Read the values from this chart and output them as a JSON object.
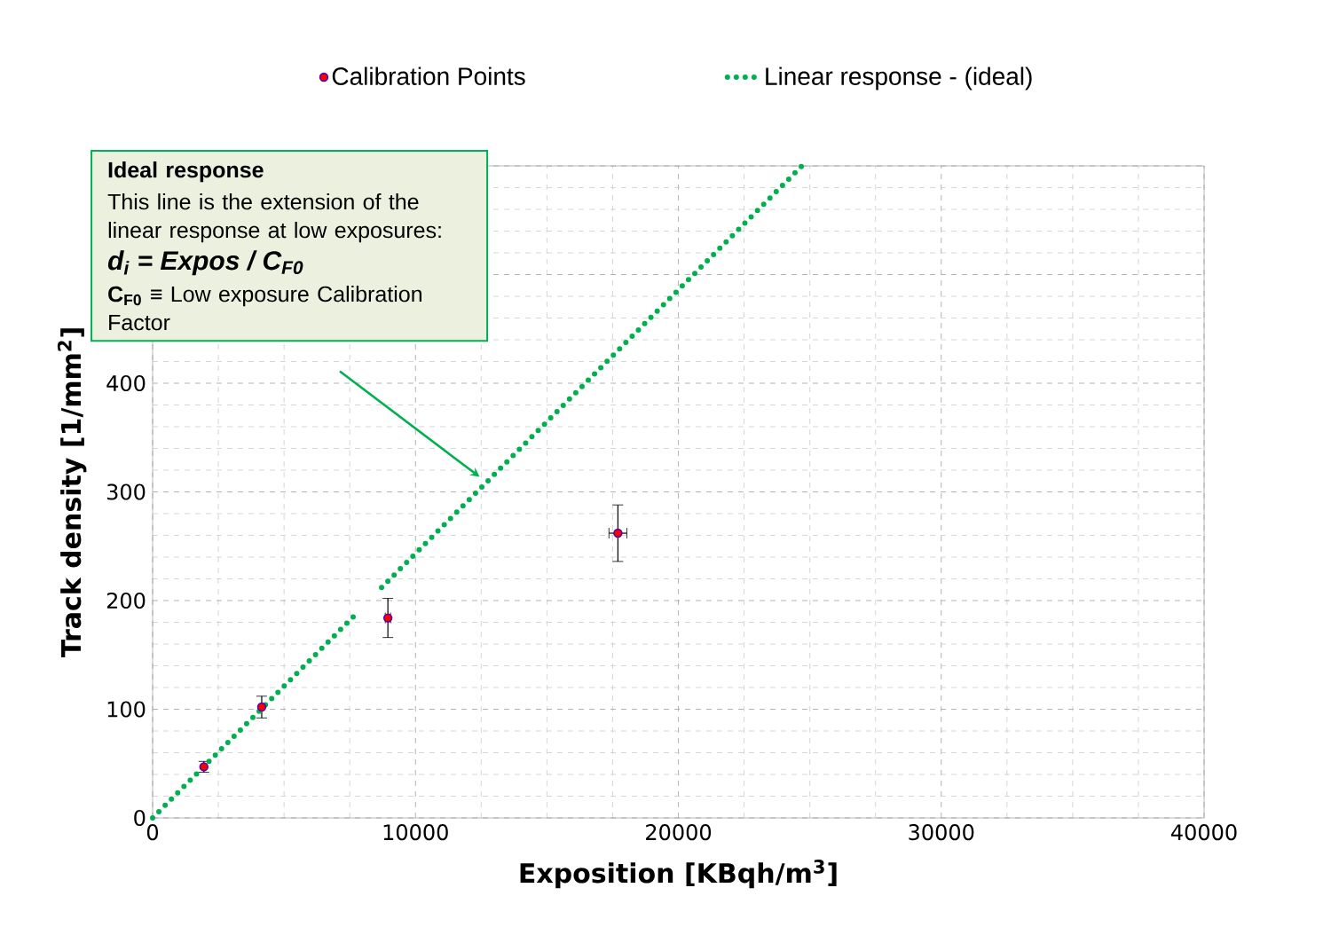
{
  "chart_data": {
    "type": "scatter",
    "xlabel": "Exposition  [KBqh/m$^{3}$]",
    "ylabel": "Track density  [1/mm$^{2}$]",
    "xlim": [
      0,
      40000
    ],
    "xticks": [
      0,
      10000,
      20000,
      30000,
      40000
    ],
    "ylim": [
      0,
      600
    ],
    "yticks": [
      0,
      100,
      200,
      300,
      400,
      {
        "value": 500,
        "label": null
      },
      {
        "value": 600,
        "label": null
      }
    ],
    "grid": true,
    "legend": "top",
    "series": [
      {
        "name": "Calibration Points",
        "marker": "circle",
        "color": "#ff0000",
        "x": [
          1950,
          4150,
          8950,
          17700
        ],
        "values": [
          47,
          102,
          184,
          262
        ],
        "errors": [
          5,
          10,
          18,
          26
        ],
        "xerrors": [
          null,
          null,
          100,
          340
        ]
      },
      {
        "name": "Linear response - (ideal)",
        "type": "line",
        "line_style": "dotted",
        "marker": "none",
        "color": "#00b050",
        "x": [
          0,
          7630,
          7631,
          8710,
          24700
        ],
        "values": [
          0,
          185,
          null,
          212,
          600
        ]
      }
    ],
    "annotations": [
      "Ideal response",
      "This line is the extension of the linear response at low exposures:",
      "d$_{i}$ = Expos / C$_{F0}$",
      "**C$_{F0}$** ≡ Low exposure Calibration Factor"
    ]
  }
}
